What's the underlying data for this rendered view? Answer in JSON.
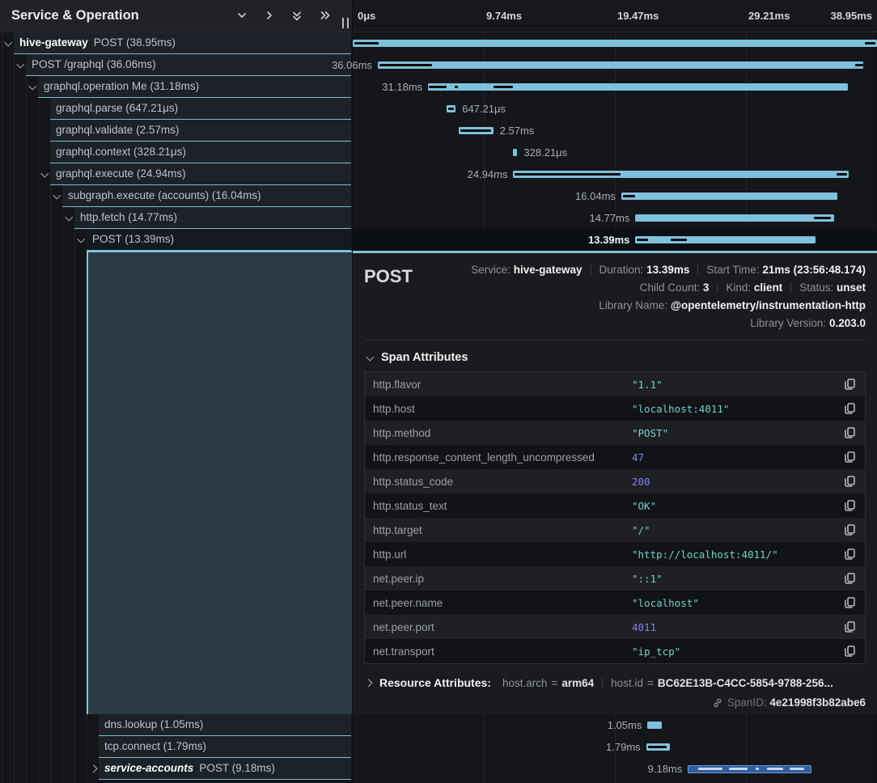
{
  "header": {
    "title": "Service & Operation",
    "icons": [
      "collapse-one-icon",
      "expand-one-icon",
      "collapse-all-icon",
      "expand-all-icon",
      "column-resize-handle"
    ]
  },
  "timeline": {
    "ticks": [
      "0μs",
      "9.74ms",
      "19.47ms",
      "29.21ms",
      "38.95ms"
    ]
  },
  "chart_data": {
    "type": "gantt-trace",
    "total_ms": 38.95,
    "bar_color": "#7fc1dc",
    "secondary_bar_color": "#2f5e9e",
    "spans": [
      {
        "service": "hive-gateway",
        "italic": false,
        "text": "POST (38.95ms)",
        "depth": 0,
        "chev": "down",
        "start_ms": 0,
        "dur_ms": 38.95,
        "dur_label": "",
        "label_side": "none",
        "style": "light",
        "selected": false,
        "marks": [
          [
            0.15,
            1.9
          ],
          [
            38.05,
            38.85
          ]
        ]
      },
      {
        "service": "",
        "italic": false,
        "text": "POST /graphql (36.06ms)",
        "depth": 1,
        "chev": "down",
        "start_ms": 1.86,
        "dur_ms": 36.06,
        "dur_label": "36.06ms",
        "label_side": "left",
        "style": "light",
        "selected": false,
        "marks": [
          [
            2.0,
            5.9
          ],
          [
            37.3,
            37.9
          ]
        ]
      },
      {
        "service": "",
        "italic": false,
        "text": "graphql.operation Me (31.18ms)",
        "depth": 2,
        "chev": "down",
        "start_ms": 5.6,
        "dur_ms": 31.18,
        "dur_label": "31.18ms",
        "label_side": "left",
        "style": "light",
        "selected": false,
        "marks": [
          [
            5.65,
            7.0
          ],
          [
            7.55,
            7.8
          ],
          [
            10.45,
            11.9
          ]
        ]
      },
      {
        "service": "",
        "italic": false,
        "text": "graphql.parse (647.21μs)",
        "depth": 3,
        "chev": "none",
        "start_ms": 7.0,
        "dur_ms": 0.64721,
        "dur_label": "647.21μs",
        "label_side": "right",
        "style": "light",
        "selected": false,
        "marks": [
          [
            7.08,
            7.5
          ]
        ]
      },
      {
        "service": "",
        "italic": false,
        "text": "graphql.validate (2.57ms)",
        "depth": 3,
        "chev": "none",
        "start_ms": 7.87,
        "dur_ms": 2.57,
        "dur_label": "2.57ms",
        "label_side": "right",
        "style": "light",
        "selected": false,
        "marks": [
          [
            8.0,
            10.3
          ]
        ]
      },
      {
        "service": "",
        "italic": false,
        "text": "graphql.context (328.21μs)",
        "depth": 3,
        "chev": "none",
        "start_ms": 11.9,
        "dur_ms": 0.32821,
        "dur_label": "328.21μs",
        "label_side": "right",
        "style": "light",
        "selected": false,
        "marks": []
      },
      {
        "service": "",
        "italic": false,
        "text": "graphql.execute (24.94ms)",
        "depth": 3,
        "chev": "down",
        "start_ms": 11.93,
        "dur_ms": 24.94,
        "dur_label": "24.94ms",
        "label_side": "left",
        "style": "light",
        "selected": false,
        "marks": [
          [
            12.05,
            19.9
          ],
          [
            35.95,
            36.7
          ]
        ]
      },
      {
        "service": "",
        "italic": false,
        "text": "subgraph.execute (accounts) (16.04ms)",
        "depth": 4,
        "chev": "down",
        "start_ms": 19.95,
        "dur_ms": 16.04,
        "dur_label": "16.04ms",
        "label_side": "left",
        "style": "light",
        "selected": false,
        "marks": [
          [
            20.05,
            20.95
          ]
        ]
      },
      {
        "service": "",
        "italic": false,
        "text": "http.fetch (14.77ms)",
        "depth": 5,
        "chev": "down",
        "start_ms": 21.0,
        "dur_ms": 14.77,
        "dur_label": "14.77ms",
        "label_side": "left",
        "style": "light",
        "selected": false,
        "marks": [
          [
            34.25,
            35.5
          ]
        ]
      },
      {
        "service": "",
        "italic": false,
        "text": "POST (13.39ms)",
        "depth": 6,
        "chev": "down",
        "start_ms": 21.0,
        "dur_ms": 13.39,
        "dur_label": "13.39ms",
        "label_side": "left",
        "style": "light",
        "selected": true,
        "marks": [
          [
            21.1,
            21.95
          ],
          [
            23.65,
            24.85
          ]
        ]
      },
      {
        "service": "",
        "italic": false,
        "text": "dns.lookup (1.05ms)",
        "depth": 7,
        "chev": "none",
        "start_ms": 21.9,
        "dur_ms": 1.05,
        "dur_label": "1.05ms",
        "label_side": "left",
        "style": "light",
        "selected": false,
        "marks": []
      },
      {
        "service": "",
        "italic": false,
        "text": "tcp.connect (1.79ms)",
        "depth": 7,
        "chev": "none",
        "start_ms": 21.8,
        "dur_ms": 1.79,
        "dur_label": "1.79ms",
        "label_side": "left",
        "style": "light",
        "selected": false,
        "marks": [
          [
            21.95,
            23.35
          ]
        ]
      },
      {
        "service": "service-accounts",
        "italic": true,
        "text": "POST (9.18ms)",
        "depth": 7,
        "chev": "right",
        "start_ms": 24.9,
        "dur_ms": 9.18,
        "dur_label": "9.18ms",
        "label_side": "left",
        "style": "outline",
        "selected": false,
        "marks": [
          [
            25.6,
            27.4
          ],
          [
            27.9,
            29.3
          ],
          [
            29.9,
            30.1
          ],
          [
            30.7,
            31.9
          ],
          [
            32.4,
            33.5
          ]
        ]
      }
    ]
  },
  "detail": {
    "title": "POST",
    "rows": [
      [
        {
          "label": "Service:",
          "value": "hive-gateway"
        },
        {
          "label": "Duration:",
          "value": "13.39ms"
        },
        {
          "label": "Start Time:",
          "value": "21ms (23:56:48.174)"
        }
      ],
      [
        {
          "label": "Child Count:",
          "value": "3"
        },
        {
          "label": "Kind:",
          "value": "client"
        },
        {
          "label": "Status:",
          "value": "unset"
        }
      ],
      [
        {
          "label": "Library Name:",
          "value": "@opentelemetry/instrumentation-http"
        }
      ],
      [
        {
          "label": "Library Version:",
          "value": "0.203.0"
        }
      ]
    ]
  },
  "attributes": {
    "title": "Span Attributes",
    "rows": [
      {
        "key": "http.flavor",
        "value": "\"1.1\"",
        "type": "str"
      },
      {
        "key": "http.host",
        "value": "\"localhost:4011\"",
        "type": "str"
      },
      {
        "key": "http.method",
        "value": "\"POST\"",
        "type": "str"
      },
      {
        "key": "http.response_content_length_uncompressed",
        "value": "47",
        "type": "num"
      },
      {
        "key": "http.status_code",
        "value": "200",
        "type": "num"
      },
      {
        "key": "http.status_text",
        "value": "\"OK\"",
        "type": "str"
      },
      {
        "key": "http.target",
        "value": "\"/\"",
        "type": "str"
      },
      {
        "key": "http.url",
        "value": "\"http://localhost:4011/\"",
        "type": "str"
      },
      {
        "key": "net.peer.ip",
        "value": "\"::1\"",
        "type": "str"
      },
      {
        "key": "net.peer.name",
        "value": "\"localhost\"",
        "type": "str"
      },
      {
        "key": "net.peer.port",
        "value": "4011",
        "type": "num"
      },
      {
        "key": "net.transport",
        "value": "\"ip_tcp\"",
        "type": "str"
      }
    ]
  },
  "resource": {
    "title": "Resource Attributes:",
    "pairs": [
      {
        "key": "host.arch",
        "value": "arm64"
      },
      {
        "key": "host.id",
        "value": "BC62E13B-C4CC-5854-9788-256..."
      }
    ]
  },
  "span_id": {
    "label": "SpanID:",
    "value": "4e21998f3b82abe6"
  }
}
